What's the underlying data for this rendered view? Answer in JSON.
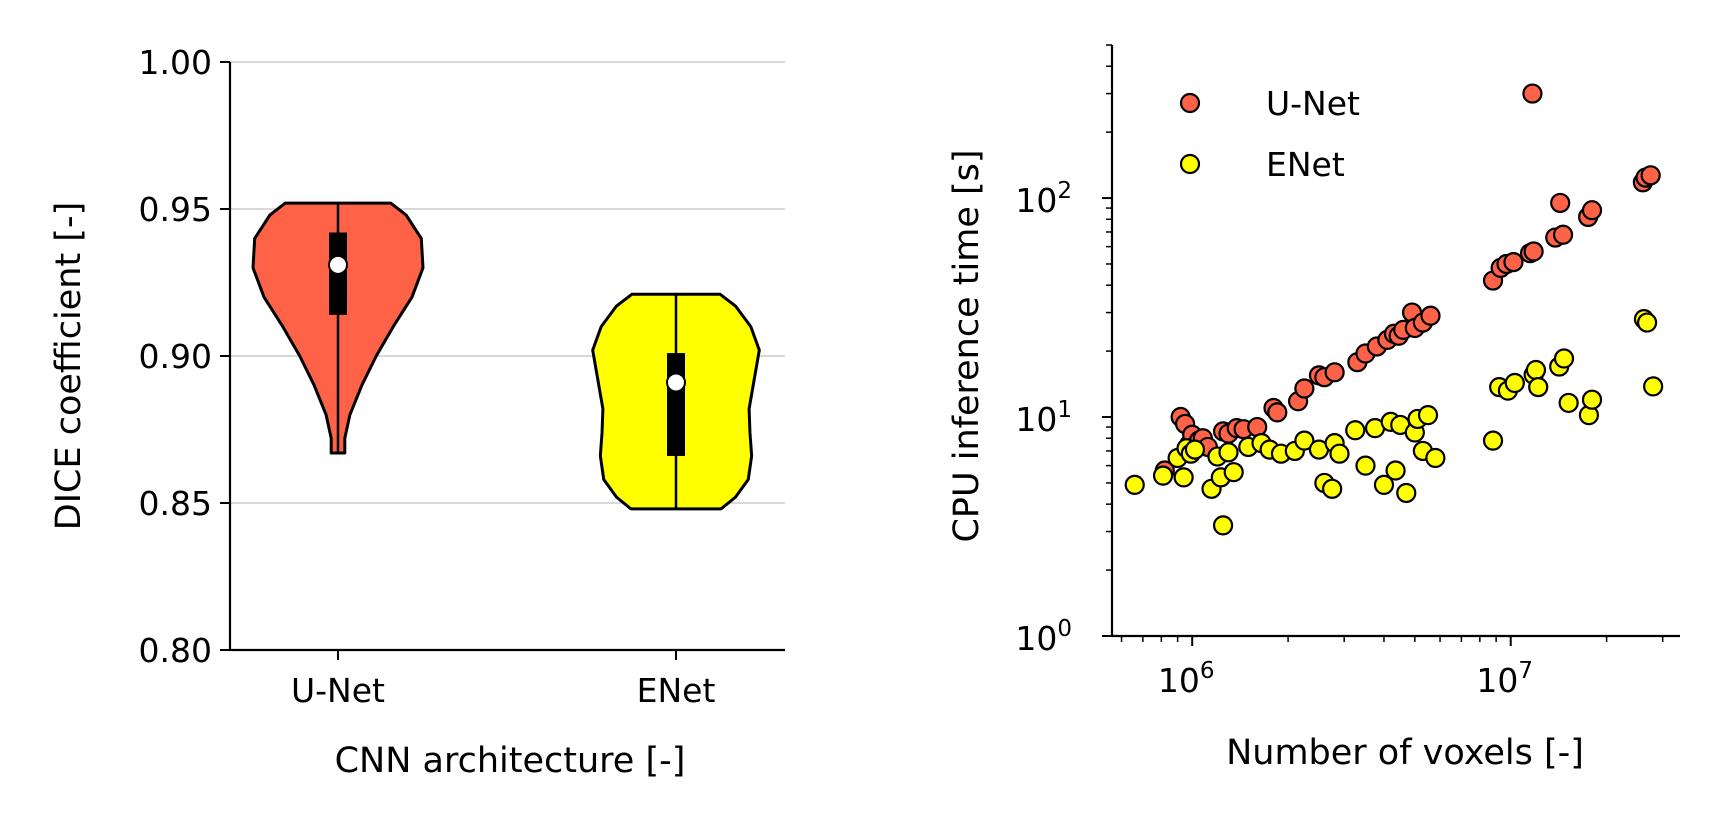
{
  "colors": {
    "unet": "#ff6347",
    "enet": "#ffff00",
    "outline": "#000000",
    "grid": "#b0b0b0"
  },
  "chart_data": [
    {
      "type": "violin",
      "xlabel": "CNN architecture [-]",
      "ylabel": "DICE coefficient [-]",
      "ylim": [
        0.8,
        1.0
      ],
      "yticks": [
        "0.80",
        "0.85",
        "0.90",
        "0.95",
        "1.00"
      ],
      "grid": "horizontal",
      "categories": [
        "U-Net",
        "ENet"
      ],
      "series": [
        {
          "name": "U-Net",
          "color": "#ff6347",
          "min": 0.867,
          "max": 0.952,
          "q1": 0.914,
          "median": 0.931,
          "q3": 0.942,
          "profile": [
            [
              0.867,
              0.08
            ],
            [
              0.872,
              0.08
            ],
            [
              0.88,
              0.14
            ],
            [
              0.89,
              0.28
            ],
            [
              0.9,
              0.45
            ],
            [
              0.91,
              0.65
            ],
            [
              0.92,
              0.87
            ],
            [
              0.93,
              1.0
            ],
            [
              0.94,
              0.98
            ],
            [
              0.948,
              0.8
            ],
            [
              0.952,
              0.62
            ]
          ]
        },
        {
          "name": "ENet",
          "color": "#ffff00",
          "min": 0.848,
          "max": 0.921,
          "q1": 0.866,
          "median": 0.891,
          "q3": 0.901,
          "profile": [
            [
              0.848,
              0.53
            ],
            [
              0.852,
              0.7
            ],
            [
              0.858,
              0.85
            ],
            [
              0.866,
              0.89
            ],
            [
              0.874,
              0.87
            ],
            [
              0.882,
              0.86
            ],
            [
              0.892,
              0.92
            ],
            [
              0.902,
              0.98
            ],
            [
              0.91,
              0.88
            ],
            [
              0.917,
              0.7
            ],
            [
              0.921,
              0.52
            ]
          ]
        }
      ]
    },
    {
      "type": "scatter",
      "xlabel": "Number of voxels [-]",
      "ylabel": "CPU inference time [s]",
      "xscale": "log",
      "yscale": "log",
      "xlim": [
        560000,
        34000000
      ],
      "ylim": [
        1,
        500
      ],
      "xticks": [
        1000000,
        10000000
      ],
      "xtick_labels": [
        {
          "base": "10",
          "exp": "6"
        },
        {
          "base": "10",
          "exp": "7"
        }
      ],
      "yticks": [
        1,
        10,
        100
      ],
      "ytick_labels": [
        {
          "base": "10",
          "exp": "0"
        },
        {
          "base": "10",
          "exp": "1"
        },
        {
          "base": "10",
          "exp": "2"
        }
      ],
      "legend": {
        "position": "top-left",
        "entries": [
          "U-Net",
          "ENet"
        ]
      },
      "series": [
        {
          "name": "U-Net",
          "color": "#ff6347",
          "points": [
            [
              820000,
              5.7
            ],
            [
              920000,
              10
            ],
            [
              950000,
              9.3
            ],
            [
              980000,
              7.5
            ],
            [
              1000000,
              8.3
            ],
            [
              1050000,
              7.8
            ],
            [
              1080000,
              8
            ],
            [
              1120000,
              7.3
            ],
            [
              1250000,
              8.6
            ],
            [
              1300000,
              8.4
            ],
            [
              1380000,
              8.9
            ],
            [
              1450000,
              8.8
            ],
            [
              1600000,
              9
            ],
            [
              1800000,
              11
            ],
            [
              1850000,
              10.5
            ],
            [
              2150000,
              11.8
            ],
            [
              2250000,
              13.5
            ],
            [
              2500000,
              15.5
            ],
            [
              2600000,
              15.2
            ],
            [
              2800000,
              16
            ],
            [
              3300000,
              17.8
            ],
            [
              3500000,
              19.5
            ],
            [
              3800000,
              21
            ],
            [
              4100000,
              22.5
            ],
            [
              4300000,
              24
            ],
            [
              4450000,
              23.5
            ],
            [
              4600000,
              25
            ],
            [
              4900000,
              30
            ],
            [
              5000000,
              25.5
            ],
            [
              5300000,
              27
            ],
            [
              5600000,
              29
            ],
            [
              8800000,
              42
            ],
            [
              9300000,
              48
            ],
            [
              9700000,
              50
            ],
            [
              10200000,
              51
            ],
            [
              11500000,
              56
            ],
            [
              11800000,
              57
            ],
            [
              11700000,
              300
            ],
            [
              13800000,
              66
            ],
            [
              14300000,
              95
            ],
            [
              14600000,
              68
            ],
            [
              17500000,
              82
            ],
            [
              18000000,
              88
            ],
            [
              26000000,
              118
            ],
            [
              26500000,
              124
            ],
            [
              27500000,
              127
            ]
          ]
        },
        {
          "name": "ENet",
          "color": "#ffff00",
          "points": [
            [
              660000,
              4.9
            ],
            [
              810000,
              5.4
            ],
            [
              900000,
              6.5
            ],
            [
              940000,
              5.3
            ],
            [
              960000,
              7.2
            ],
            [
              990000,
              6.8
            ],
            [
              1020000,
              7.1
            ],
            [
              1150000,
              4.7
            ],
            [
              1200000,
              6.6
            ],
            [
              1230000,
              5.3
            ],
            [
              1250000,
              3.2
            ],
            [
              1300000,
              6.9
            ],
            [
              1350000,
              5.6
            ],
            [
              1500000,
              7.3
            ],
            [
              1650000,
              7.6
            ],
            [
              1750000,
              7.1
            ],
            [
              1900000,
              6.8
            ],
            [
              2100000,
              7
            ],
            [
              2250000,
              7.8
            ],
            [
              2500000,
              7.1
            ],
            [
              2600000,
              5
            ],
            [
              2750000,
              4.7
            ],
            [
              2800000,
              7.6
            ],
            [
              2900000,
              6.8
            ],
            [
              3250000,
              8.7
            ],
            [
              3500000,
              6
            ],
            [
              3750000,
              8.9
            ],
            [
              4000000,
              4.9
            ],
            [
              4200000,
              9.5
            ],
            [
              4350000,
              5.7
            ],
            [
              4500000,
              9.2
            ],
            [
              4700000,
              4.5
            ],
            [
              5000000,
              8.5
            ],
            [
              5100000,
              9.8
            ],
            [
              5300000,
              7
            ],
            [
              5500000,
              10.2
            ],
            [
              5800000,
              6.5
            ],
            [
              9200000,
              13.7
            ],
            [
              9800000,
              13.2
            ],
            [
              10300000,
              14.3
            ],
            [
              11800000,
              15.6
            ],
            [
              12000000,
              16.4
            ],
            [
              12200000,
              13.7
            ],
            [
              14200000,
              17
            ],
            [
              14700000,
              18.5
            ],
            [
              15200000,
              11.6
            ],
            [
              17600000,
              10.2
            ],
            [
              18000000,
              12
            ],
            [
              26200000,
              28
            ],
            [
              26800000,
              27
            ],
            [
              28000000,
              13.8
            ],
            [
              8800000,
              7.8
            ]
          ]
        }
      ]
    }
  ]
}
